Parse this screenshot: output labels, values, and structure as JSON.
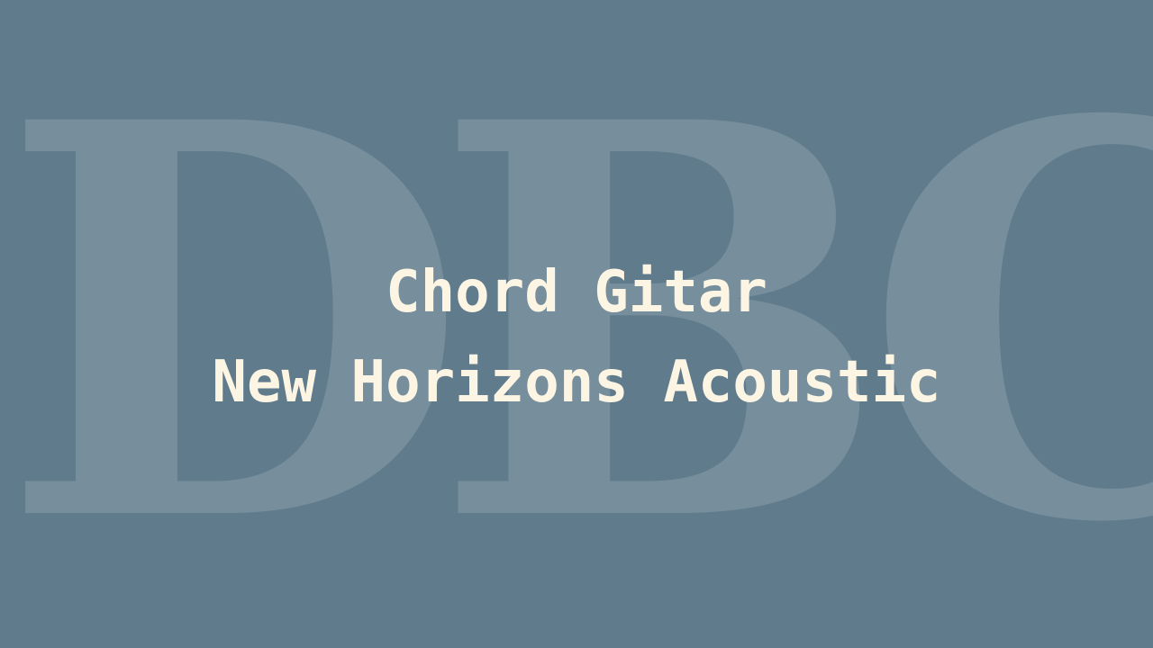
{
  "thumbnail": {
    "watermark_text": "DBC",
    "title_line_1": "Chord Gitar",
    "title_line_2": "New Horizons Acoustic",
    "colors": {
      "background": "#5f7b8c",
      "title_text": "#fdf5e4",
      "watermark": "#ffffff"
    }
  }
}
